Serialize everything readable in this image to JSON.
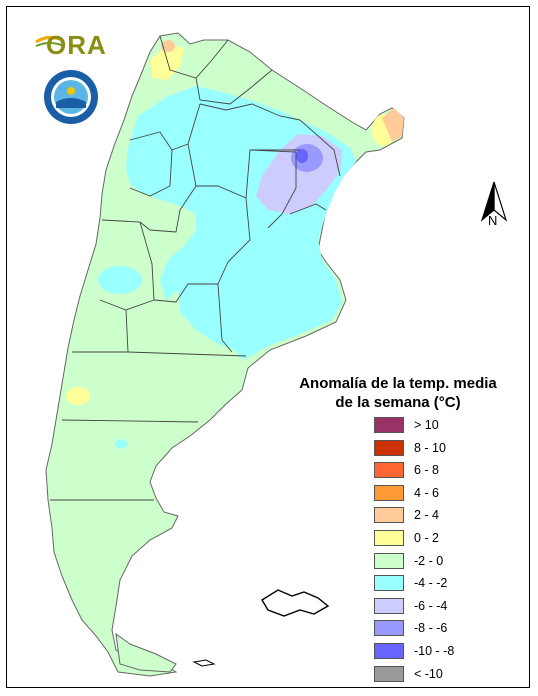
{
  "logos": {
    "ora_text": "ORA"
  },
  "compass": {
    "label": "N"
  },
  "legend": {
    "title_line1": "Anomalía de la temp. media",
    "title_line2": "de la semana (°C)",
    "items": [
      {
        "label": "> 10",
        "color": "#993366"
      },
      {
        "label": "8 - 10",
        "color": "#cc3300"
      },
      {
        "label": "6 - 8",
        "color": "#ff6633"
      },
      {
        "label": "4 - 6",
        "color": "#ff9933"
      },
      {
        "label": "2 - 4",
        "color": "#ffcc99"
      },
      {
        "label": "0 - 2",
        "color": "#ffff99"
      },
      {
        "label": "-2 - 0",
        "color": "#ccffcc"
      },
      {
        "label": "-4 - -2",
        "color": "#99ffff"
      },
      {
        "label": "-6 - -4",
        "color": "#ccccff"
      },
      {
        "label": "-8 - -6",
        "color": "#9999ff"
      },
      {
        "label": "-10 - -8",
        "color": "#6666ff"
      },
      {
        "label": "< -10",
        "color": "#999999"
      }
    ]
  }
}
